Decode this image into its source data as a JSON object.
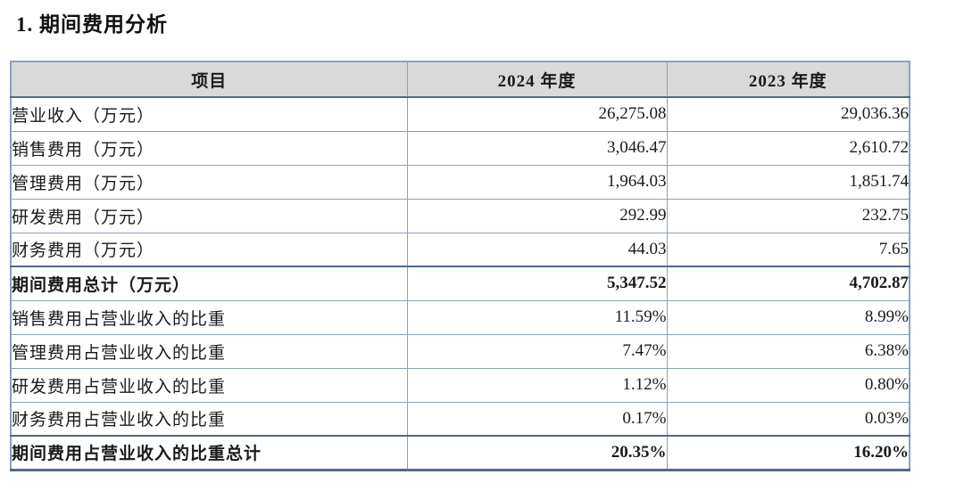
{
  "page": {
    "title": "1. 期间费用分析"
  },
  "colors": {
    "header_bg": "#d9d9d9",
    "border_light": "#8ba0bf",
    "border_dark": "#54688a",
    "text": "#1a1a1a"
  },
  "table": {
    "columns": [
      "项目",
      "2024 年度",
      "2023 年度"
    ],
    "rows": [
      {
        "label": "营业收入（万元）",
        "v2024": "26,275.08",
        "v2023": "29,036.36",
        "bold": false
      },
      {
        "label": "销售费用（万元）",
        "v2024": "3,046.47",
        "v2023": "2,610.72",
        "bold": false
      },
      {
        "label": "管理费用（万元）",
        "v2024": "1,964.03",
        "v2023": "1,851.74",
        "bold": false
      },
      {
        "label": "研发费用（万元）",
        "v2024": "292.99",
        "v2023": "232.75",
        "bold": false
      },
      {
        "label": "财务费用（万元）",
        "v2024": "44.03",
        "v2023": "7.65",
        "bold": false
      },
      {
        "label": "期间费用总计（万元）",
        "v2024": "5,347.52",
        "v2023": "4,702.87",
        "bold": true
      },
      {
        "label": "销售费用占营业收入的比重",
        "v2024": "11.59%",
        "v2023": "8.99%",
        "bold": false
      },
      {
        "label": "管理费用占营业收入的比重",
        "v2024": "7.47%",
        "v2023": "6.38%",
        "bold": false
      },
      {
        "label": "研发费用占营业收入的比重",
        "v2024": "1.12%",
        "v2023": "0.80%",
        "bold": false
      },
      {
        "label": "财务费用占营业收入的比重",
        "v2024": "0.17%",
        "v2023": "0.03%",
        "bold": false
      },
      {
        "label": "期间费用占营业收入的比重总计",
        "v2024": "20.35%",
        "v2023": "16.20%",
        "bold": true
      }
    ]
  }
}
